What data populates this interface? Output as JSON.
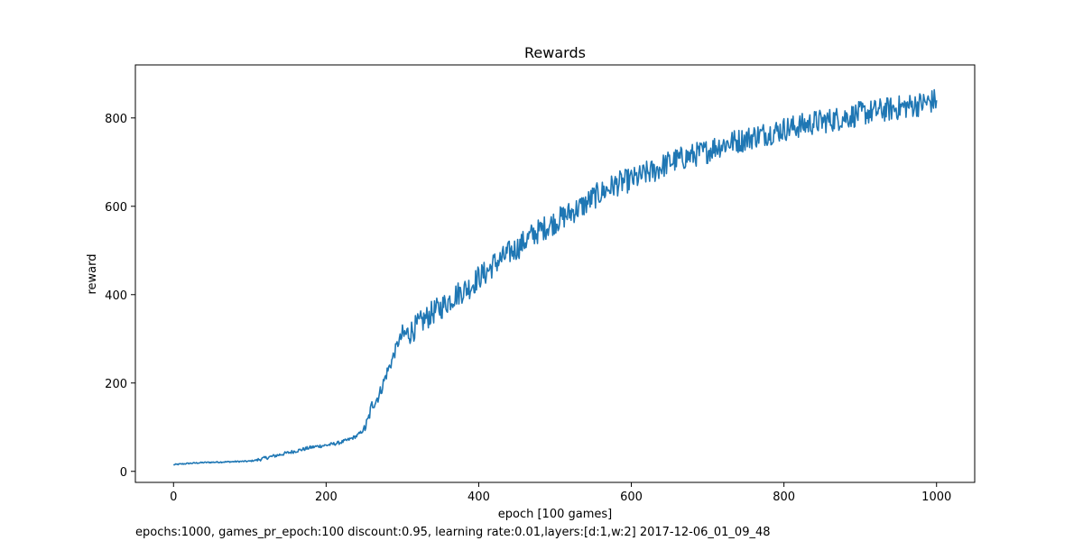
{
  "chart_data": {
    "type": "line",
    "title": "Rewards",
    "xlabel": "epoch [100 games]",
    "ylabel": "reward",
    "xlim": [
      -50,
      1050
    ],
    "ylim": [
      -25,
      920
    ],
    "xticks": [
      0,
      200,
      400,
      600,
      800,
      1000
    ],
    "yticks": [
      0,
      200,
      400,
      600,
      800
    ],
    "grid": false,
    "legend": "none",
    "footnote": "epochs:1000, games_pr_epoch:100 discount:0.95, learning rate:0.01,layers:[d:1,w:2] 2017-12-06_01_09_48",
    "series": [
      {
        "color": "#1f77b4",
        "x": [
          0,
          20,
          40,
          60,
          80,
          100,
          110,
          120,
          130,
          140,
          150,
          160,
          170,
          180,
          190,
          200,
          210,
          220,
          230,
          240,
          250,
          255,
          260,
          265,
          270,
          275,
          280,
          285,
          290,
          295,
          300,
          310,
          320,
          330,
          340,
          350,
          360,
          370,
          380,
          390,
          400,
          410,
          420,
          430,
          440,
          450,
          460,
          470,
          480,
          490,
          500,
          510,
          520,
          530,
          540,
          550,
          560,
          570,
          580,
          590,
          600,
          610,
          620,
          630,
          640,
          650,
          660,
          670,
          680,
          690,
          700,
          710,
          720,
          730,
          740,
          750,
          760,
          770,
          780,
          790,
          800,
          810,
          820,
          830,
          840,
          850,
          860,
          870,
          880,
          890,
          900,
          910,
          920,
          930,
          940,
          950,
          960,
          970,
          980,
          990,
          1000
        ],
        "y": [
          15,
          18,
          20,
          21,
          22,
          23,
          26,
          30,
          34,
          38,
          42,
          46,
          50,
          54,
          57,
          59,
          62,
          66,
          72,
          80,
          95,
          115,
          150,
          160,
          175,
          200,
          225,
          245,
          270,
          295,
          305,
          315,
          330,
          345,
          360,
          370,
          385,
          400,
          410,
          420,
          440,
          450,
          470,
          480,
          495,
          505,
          520,
          535,
          545,
          555,
          565,
          575,
          585,
          595,
          605,
          620,
          630,
          640,
          650,
          655,
          660,
          665,
          675,
          680,
          690,
          700,
          705,
          710,
          715,
          720,
          725,
          735,
          740,
          745,
          748,
          752,
          758,
          762,
          766,
          770,
          775,
          778,
          782,
          785,
          790,
          792,
          795,
          798,
          802,
          805,
          810,
          812,
          815,
          818,
          820,
          823,
          826,
          829,
          832,
          836,
          840
        ]
      }
    ]
  }
}
